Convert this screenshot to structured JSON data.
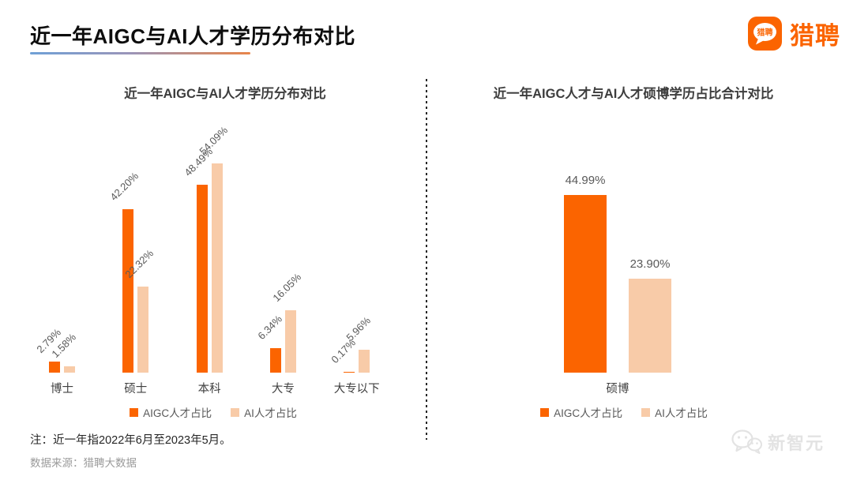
{
  "header": {
    "title": "近一年AIGC与AI人才学历分布对比",
    "brand": "猎聘",
    "brand_icon_text": "猎聘"
  },
  "colors": {
    "series": [
      "#fb6400",
      "#f8cba8"
    ],
    "brand": "#fb6400"
  },
  "chart_data": [
    {
      "type": "bar",
      "title": "近一年AIGC与AI人才学历分布对比",
      "categories": [
        "博士",
        "硕士",
        "本科",
        "大专",
        "大专以下"
      ],
      "series": [
        {
          "name": "AIGC人才占比",
          "values": [
            2.79,
            42.2,
            48.49,
            6.34,
            0.17
          ],
          "labels": [
            "2.79%",
            "42.20%",
            "48.49%",
            "6.34%",
            "0.17%"
          ]
        },
        {
          "name": "AI人才占比",
          "values": [
            1.58,
            22.32,
            54.09,
            16.05,
            5.96
          ],
          "labels": [
            "1.58%",
            "22.32%",
            "54.09%",
            "16.05%",
            "5.96%"
          ]
        }
      ],
      "ylim": [
        0,
        60
      ],
      "grid": false,
      "axes_visible": false,
      "value_label_rotation": 45,
      "legend_position": "bottom"
    },
    {
      "type": "bar",
      "title": "近一年AIGC人才与AI人才硕博学历占比合计对比",
      "categories": [
        "硕博"
      ],
      "series": [
        {
          "name": "AIGC人才占比",
          "values": [
            44.99
          ],
          "labels": [
            "44.99%"
          ]
        },
        {
          "name": "AI人才占比",
          "values": [
            23.9
          ],
          "labels": [
            "23.90%"
          ]
        }
      ],
      "ylim": [
        0,
        60
      ],
      "grid": false,
      "axes_visible": false,
      "value_label_rotation": 0,
      "legend_position": "bottom"
    }
  ],
  "footer": {
    "note": "注：近一年指2022年6月至2023年5月。",
    "source": "数据来源：猎聘大数据"
  },
  "watermark": {
    "text": "新智元"
  }
}
